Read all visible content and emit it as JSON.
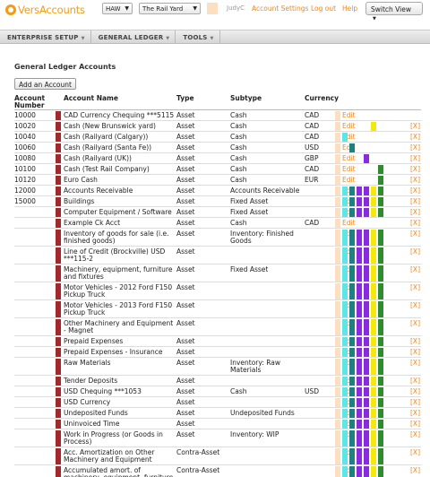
{
  "header": {
    "logo_text": "VersAccounts",
    "company_code": "HAW",
    "company_name": "The Rail Yard",
    "user": "JudyC",
    "links": [
      "Account Settings",
      "Log out",
      "Help"
    ],
    "switch_view": "Switch View"
  },
  "nav": [
    "ENTERPRISE SETUP",
    "GENERAL LEDGER",
    "TOOLS"
  ],
  "page_title": "General Ledger Accounts",
  "add_button": "Add an Account",
  "columns": {
    "number": "Account Number",
    "name": "Account Name",
    "type": "Type",
    "subtype": "Subtype",
    "currency": "Currency"
  },
  "edit_label": "Edit",
  "delete_label": "[X]",
  "colors": {
    "accent": "#e98b22",
    "marker": "#a3282b",
    "peach": "#fbdfc0",
    "cyan": "#5ee6e6",
    "teal": "#1e8080",
    "purple": "#8a2be2",
    "yellow": "#f5e90c",
    "green": "#2e8b2e"
  },
  "rows": [
    {
      "number": "10000",
      "name": "CAD Currency Chequing ***5115",
      "type": "Asset",
      "subtype": "Cash",
      "currency": "CAD",
      "tags": [
        "peach"
      ],
      "delete": false
    },
    {
      "number": "10020",
      "name": "Cash (New Brunswick yard)",
      "type": "Asset",
      "subtype": "Cash",
      "currency": "CAD",
      "tags": [
        "peach",
        "",
        "",
        "",
        "",
        "yellow"
      ],
      "delete": true
    },
    {
      "number": "10040",
      "name": "Cash (Railyard (Calgary))",
      "type": "Asset",
      "subtype": "Cash",
      "currency": "CAD",
      "tags": [
        "peach",
        "cyan"
      ],
      "delete": true
    },
    {
      "number": "10060",
      "name": "Cash (Railyard (Santa Fe))",
      "type": "Asset",
      "subtype": "Cash",
      "currency": "USD",
      "tags": [
        "peach",
        "",
        "teal"
      ],
      "delete": true
    },
    {
      "number": "10080",
      "name": "Cash (Railyard (UK))",
      "type": "Asset",
      "subtype": "Cash",
      "currency": "GBP",
      "tags": [
        "peach",
        "",
        "",
        "",
        "purple"
      ],
      "delete": true
    },
    {
      "number": "10100",
      "name": "Cash (Test Rail Company)",
      "type": "Asset",
      "subtype": "Cash",
      "currency": "CAD",
      "tags": [
        "peach",
        "",
        "",
        "",
        "",
        "",
        "green"
      ],
      "delete": true
    },
    {
      "number": "10120",
      "name": "Euro Cash",
      "type": "Asset",
      "subtype": "Cash",
      "currency": "EUR",
      "tags": [
        "peach",
        "",
        "",
        "",
        "",
        "",
        "green"
      ],
      "delete": true
    },
    {
      "number": "12000",
      "name": "Accounts Receivable",
      "type": "Asset",
      "subtype": "Accounts Receivable",
      "currency": "",
      "tags": [
        "peach",
        "cyan",
        "teal",
        "purple",
        "purple",
        "yellow",
        "green"
      ],
      "delete": true
    },
    {
      "number": "15000",
      "name": "Buildings",
      "type": "Asset",
      "subtype": "Fixed Asset",
      "currency": "",
      "tags": [
        "peach",
        "cyan",
        "teal",
        "purple",
        "purple",
        "yellow",
        "green"
      ],
      "delete": true
    },
    {
      "number": "",
      "name": "Computer Equipment / Software",
      "type": "Asset",
      "subtype": "Fixed Asset",
      "currency": "",
      "tags": [
        "peach",
        "cyan",
        "teal",
        "purple",
        "purple",
        "yellow",
        "green"
      ],
      "delete": true
    },
    {
      "number": "",
      "name": "Example Ck Acct",
      "type": "Asset",
      "subtype": "Cash",
      "currency": "CAD",
      "tags": [
        "peach"
      ],
      "delete": true
    },
    {
      "number": "",
      "name": "Inventory of goods for sale (i.e. finished goods)",
      "type": "Asset",
      "subtype": "Inventory: Finished Goods",
      "currency": "",
      "tags": [
        "peach",
        "cyan",
        "teal",
        "purple",
        "purple",
        "yellow",
        "green"
      ],
      "delete": true
    },
    {
      "number": "",
      "name": "Line of Credit (Brockville) USD ***115-2",
      "type": "Asset",
      "subtype": "",
      "currency": "",
      "tags": [
        "peach",
        "cyan",
        "teal",
        "purple",
        "purple",
        "yellow",
        "green"
      ],
      "delete": true
    },
    {
      "number": "",
      "name": "Machinery, equipment, furniture and fixtures",
      "type": "Asset",
      "subtype": "Fixed Asset",
      "currency": "",
      "tags": [
        "peach",
        "cyan",
        "teal",
        "purple",
        "purple",
        "yellow",
        "green"
      ],
      "delete": true
    },
    {
      "number": "",
      "name": "Motor Vehicles - 2012 Ford F150 Pickup Truck",
      "type": "Asset",
      "subtype": "",
      "currency": "",
      "tags": [
        "peach",
        "cyan",
        "teal",
        "purple",
        "purple",
        "yellow",
        "green"
      ],
      "delete": true
    },
    {
      "number": "",
      "name": "Motor Vehicles - 2013 Ford F150 Pickup Truck",
      "type": "Asset",
      "subtype": "",
      "currency": "",
      "tags": [
        "peach",
        "cyan",
        "teal",
        "purple",
        "purple",
        "yellow",
        "green"
      ],
      "delete": true
    },
    {
      "number": "",
      "name": "Other Machinery and Equipment - Magnet",
      "type": "Asset",
      "subtype": "",
      "currency": "",
      "tags": [
        "peach",
        "cyan",
        "teal",
        "purple",
        "purple",
        "yellow",
        "green"
      ],
      "delete": true
    },
    {
      "number": "",
      "name": "Prepaid Expenses",
      "type": "Asset",
      "subtype": "",
      "currency": "",
      "tags": [
        "peach",
        "cyan",
        "teal",
        "purple",
        "purple",
        "yellow",
        "green"
      ],
      "delete": true
    },
    {
      "number": "",
      "name": "Prepaid Expenses - Insurance",
      "type": "Asset",
      "subtype": "",
      "currency": "",
      "tags": [
        "peach",
        "cyan",
        "teal",
        "purple",
        "purple",
        "yellow",
        "green"
      ],
      "delete": true
    },
    {
      "number": "",
      "name": "Raw Materials",
      "type": "Asset",
      "subtype": "Inventory: Raw Materials",
      "currency": "",
      "tags": [
        "peach",
        "cyan",
        "teal",
        "purple",
        "purple",
        "yellow",
        "green"
      ],
      "delete": true
    },
    {
      "number": "",
      "name": "Tender Deposits",
      "type": "Asset",
      "subtype": "",
      "currency": "",
      "tags": [
        "peach",
        "cyan",
        "teal",
        "purple",
        "purple",
        "yellow",
        "green"
      ],
      "delete": true
    },
    {
      "number": "",
      "name": "USD Chequing ***1053",
      "type": "Asset",
      "subtype": "Cash",
      "currency": "USD",
      "tags": [
        "peach",
        "cyan",
        "teal",
        "purple",
        "purple",
        "yellow",
        "green"
      ],
      "delete": true
    },
    {
      "number": "",
      "name": "USD Currency",
      "type": "Asset",
      "subtype": "",
      "currency": "",
      "tags": [
        "peach",
        "cyan",
        "teal",
        "purple",
        "purple",
        "yellow",
        "green"
      ],
      "delete": true
    },
    {
      "number": "",
      "name": "Undeposited Funds",
      "type": "Asset",
      "subtype": "Undeposited Funds",
      "currency": "",
      "tags": [
        "peach",
        "cyan",
        "teal",
        "purple",
        "purple",
        "yellow",
        "green"
      ],
      "delete": true
    },
    {
      "number": "",
      "name": "Uninvoiced Time",
      "type": "Asset",
      "subtype": "",
      "currency": "",
      "tags": [
        "peach",
        "cyan",
        "teal",
        "purple",
        "purple",
        "yellow",
        "green"
      ],
      "delete": true
    },
    {
      "number": "",
      "name": "Work in Progress (or Goods in Process)",
      "type": "Asset",
      "subtype": "Inventory: WIP",
      "currency": "",
      "tags": [
        "peach",
        "cyan",
        "teal",
        "purple",
        "purple",
        "yellow",
        "green"
      ],
      "delete": true
    },
    {
      "number": "",
      "name": "Acc. Amortization on Other Machinery and Equipment",
      "type": "Contra-Asset",
      "subtype": "",
      "currency": "",
      "tags": [
        "peach",
        "cyan",
        "teal",
        "purple",
        "purple",
        "yellow",
        "green"
      ],
      "delete": true
    },
    {
      "number": "",
      "name": "Accumulated amort. of machinery, equipment, furniture and fixtures",
      "type": "Contra-Asset",
      "subtype": "",
      "currency": "",
      "tags": [
        "peach",
        "cyan",
        "teal",
        "purple",
        "purple",
        "yellow",
        "green"
      ],
      "delete": true
    }
  ]
}
